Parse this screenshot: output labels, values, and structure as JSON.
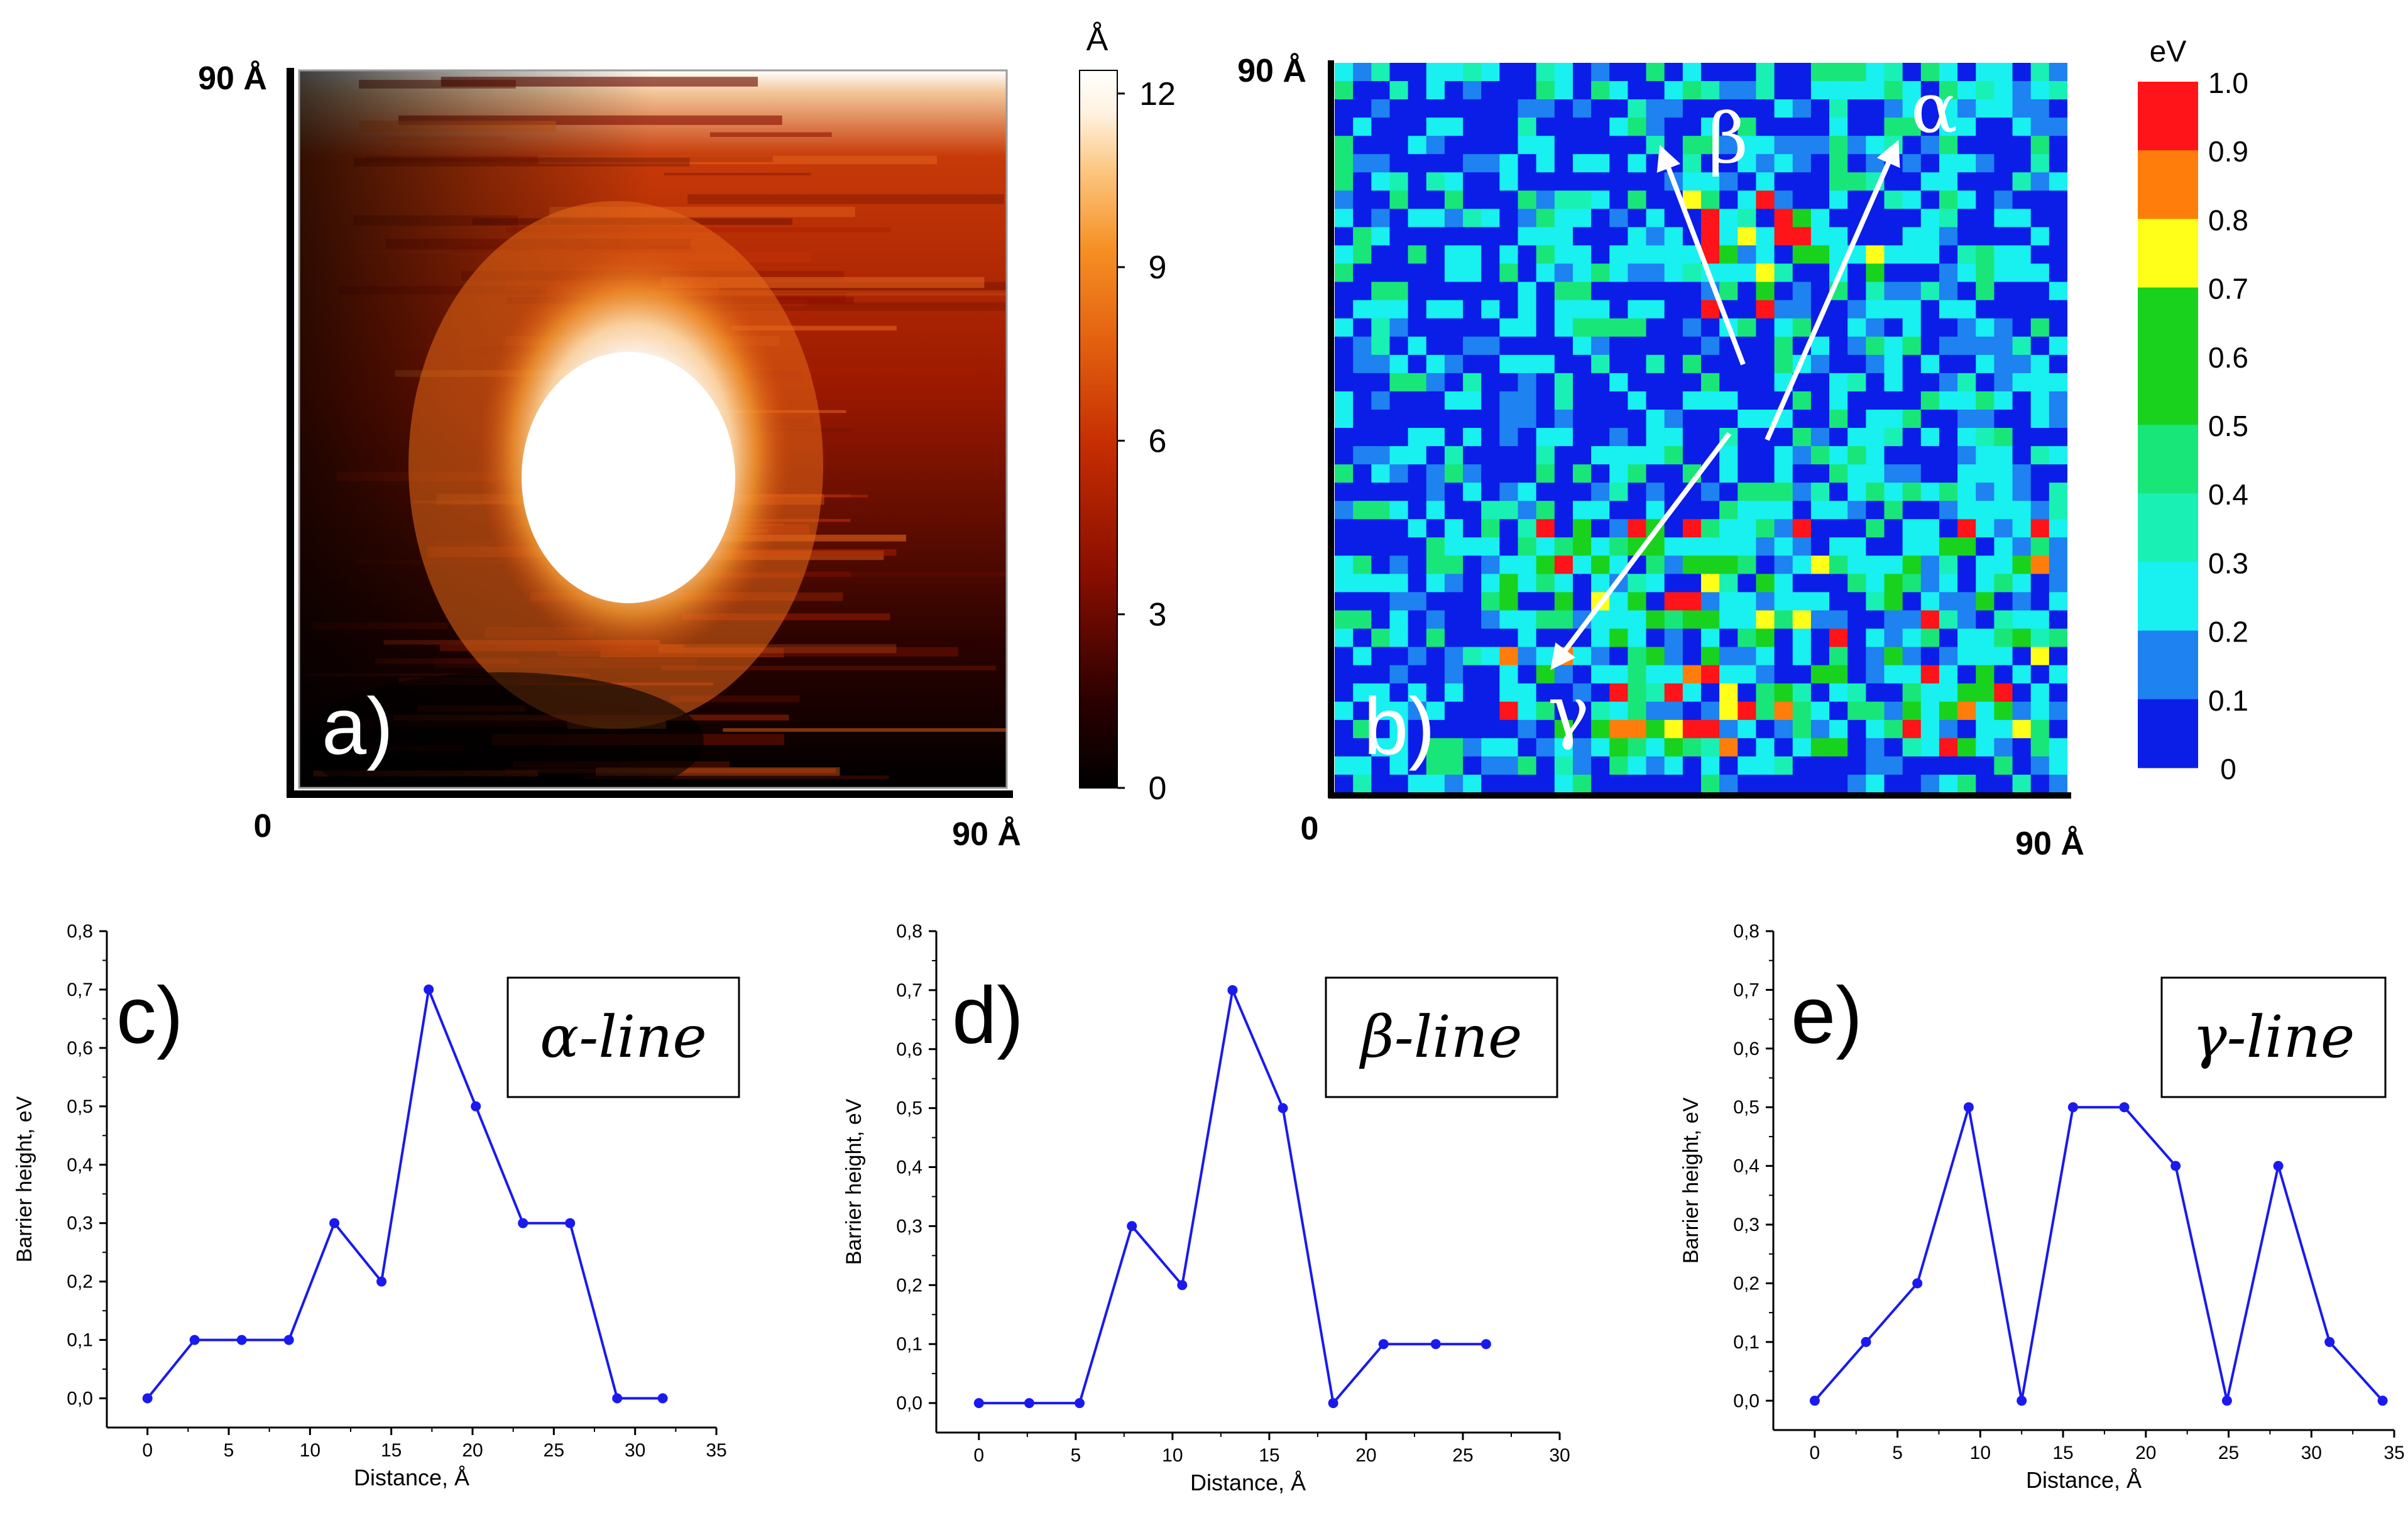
{
  "colors": {
    "line_series": "#1a1aee",
    "arrow": "#ffffff",
    "heat_stops": [
      "#000000",
      "#2a0000",
      "#7a0a00",
      "#b82100",
      "#d84a0c",
      "#f07a1c",
      "#fbb050",
      "#ffe6c0",
      "#ffffff"
    ],
    "eV_levels": [
      "#0a1ee8",
      "#1e82f0",
      "#19f0f0",
      "#19f0b4",
      "#19e678",
      "#19d21e",
      "#ffff19",
      "#ff7d0a",
      "#ff1419"
    ]
  },
  "chart_data": [
    {
      "panel": "a)",
      "type": "heatmap",
      "description_scale": "Å",
      "y_axis_top_label": "90 Å",
      "x_axis_right_label": "90 Å",
      "origin_label": "0",
      "colorbar": {
        "unit": "Å",
        "ticks": [
          "12",
          "9",
          "6",
          "3",
          "0"
        ],
        "range": [
          0,
          12.4
        ]
      }
    },
    {
      "panel": "b)",
      "type": "heatmap",
      "y_axis_top_label": "90 Å",
      "x_axis_right_label": "90 Å",
      "origin_label": "0",
      "colorbar": {
        "unit": "eV",
        "ticks": [
          "1.0",
          "0.9",
          "0.8",
          "0.7",
          "0.6",
          "0.5",
          "0.4",
          "0.3",
          "0.2",
          "0.1",
          "0"
        ]
      },
      "line_labels": {
        "alpha": "α",
        "beta": "β",
        "gamma": "γ"
      }
    },
    {
      "panel": "c)",
      "type": "line",
      "legend_box": "α-line",
      "xlabel": "Distance, Å",
      "ylabel": "Barrier height, eV",
      "xlim": [
        -2.5,
        35
      ],
      "ylim": [
        -0.05,
        0.8
      ],
      "xticks": [
        "0",
        "5",
        "10",
        "15",
        "20",
        "25",
        "30",
        "35"
      ],
      "yticks": [
        "0,0",
        "0,1",
        "0,2",
        "0,3",
        "0,4",
        "0,5",
        "0,6",
        "0,7",
        "0,8"
      ],
      "x": [
        0,
        2.9,
        5.8,
        8.7,
        11.5,
        14.4,
        17.3,
        20.2,
        23.1,
        26.0,
        28.9,
        31.7
      ],
      "y": [
        0.0,
        0.1,
        0.1,
        0.1,
        0.3,
        0.2,
        0.7,
        0.5,
        0.3,
        0.3,
        0.0,
        0.0
      ]
    },
    {
      "panel": "d)",
      "type": "line",
      "legend_box": "β-line",
      "xlabel": "Distance, Å",
      "ylabel": "Barrier height, eV",
      "xlim": [
        -2.2,
        30
      ],
      "ylim": [
        -0.05,
        0.8
      ],
      "xticks": [
        "0",
        "5",
        "10",
        "15",
        "20",
        "25",
        "30"
      ],
      "yticks": [
        "0,0",
        "0,1",
        "0,2",
        "0,3",
        "0,4",
        "0,5",
        "0,6",
        "0,7",
        "0,8"
      ],
      "x": [
        0,
        2.6,
        5.2,
        7.9,
        10.5,
        13.1,
        15.7,
        18.3,
        20.9,
        23.6,
        26.2
      ],
      "y": [
        0.0,
        0.0,
        0.0,
        0.3,
        0.2,
        0.7,
        0.5,
        0.0,
        0.1,
        0.1,
        0.1
      ]
    },
    {
      "panel": "e)",
      "type": "line",
      "legend_box": "γ-line",
      "xlabel": "Distance, Å",
      "ylabel": "Barrier height, eV",
      "xlim": [
        -2.5,
        35
      ],
      "ylim": [
        -0.05,
        0.8
      ],
      "xticks": [
        "0",
        "5",
        "10",
        "15",
        "20",
        "25",
        "30",
        "35"
      ],
      "yticks": [
        "0,0",
        "0,1",
        "0,2",
        "0,3",
        "0,4",
        "0,5",
        "0,6",
        "0,7",
        "0,8"
      ],
      "x": [
        0,
        3.1,
        6.2,
        9.3,
        12.5,
        15.6,
        18.7,
        21.8,
        24.9,
        28.0,
        31.1,
        34.3
      ],
      "y": [
        0.0,
        0.1,
        0.2,
        0.5,
        0.0,
        0.5,
        0.5,
        0.4,
        0.0,
        0.4,
        0.1,
        0.0
      ]
    }
  ]
}
